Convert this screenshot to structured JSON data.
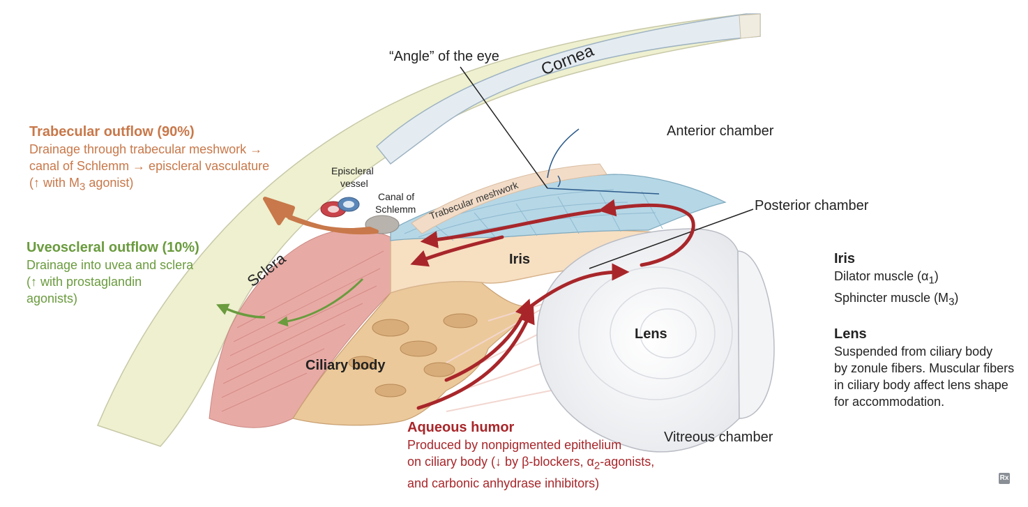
{
  "labels": {
    "angle": "“Angle” of the eye",
    "cornea": "Cornea",
    "anterior_chamber": "Anterior chamber",
    "posterior_chamber": "Posterior chamber",
    "vitreous_chamber": "Vitreous chamber",
    "episcleral_vessel_1": "Episcleral",
    "episcleral_vessel_2": "vessel",
    "canal_1": "Canal of",
    "canal_2": "Schlemm",
    "trabecular_meshwork": "Trabecular meshwork",
    "sclera": "Sclera",
    "iris": "Iris",
    "lens": "Lens",
    "ciliary_body": "Ciliary body"
  },
  "trabecular_outflow": {
    "title": "Trabecular outflow (90%)",
    "line1": "Drainage through trabecular meshwork →",
    "line2": "canal of Schlemm → episcleral vasculature",
    "line3_pre": "(↑ with M",
    "line3_sub": "3",
    "line3_post": " agonist)",
    "color": "#c8784a"
  },
  "uveoscleral_outflow": {
    "title": "Uveoscleral outflow (10%)",
    "line1": "Drainage into uvea and sclera",
    "line2": "(↑ with prostaglandin",
    "line3": "agonists)",
    "color": "#6a9b3e"
  },
  "aqueous_humor": {
    "title": "Aqueous humor",
    "line1": "Produced by nonpigmented epithelium",
    "line2_pre": "on ciliary body (↓ by β-blockers, α",
    "line2_sub": "2",
    "line2_post": "-agonists,",
    "line3": "and carbonic anhydrase inhibitors)",
    "color": "#a8262a"
  },
  "iris_info": {
    "title": "Iris",
    "dilator_pre": "Dilator muscle (α",
    "dilator_sub": "1",
    "dilator_post": ")",
    "sphincter_pre": "Sphincter muscle (M",
    "sphincter_sub": "3",
    "sphincter_post": ")"
  },
  "lens_info": {
    "title": "Lens",
    "line1": "Suspended from ciliary body",
    "line2": "by zonule fibers. Muscular fibers",
    "line3": "in ciliary body affect lens shape",
    "line4": "for accommodation."
  },
  "badge": "Rx",
  "colors": {
    "cornea": "#e4ecf2",
    "sclera": "#eef0cf",
    "iris": "#f7dfc2",
    "ciliary": "#ecc99a",
    "muscle": "#e8aaa5",
    "aqueous_arrow": "#a8262a",
    "trabecular_arrow": "#c8784a",
    "uveoscleral_arrow": "#6a9b3e",
    "meshwork": "#b6d7e6"
  }
}
